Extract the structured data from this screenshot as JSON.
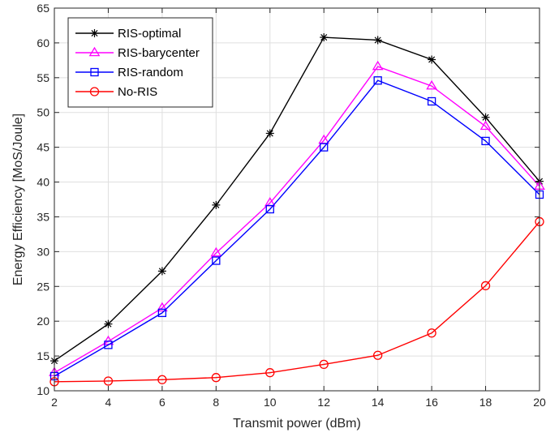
{
  "chart_data": {
    "type": "line",
    "title": "",
    "xlabel": "Transmit power (dBm)",
    "ylabel": "Energy Efficiency [MoS/Joule]",
    "x": [
      2,
      4,
      6,
      8,
      10,
      12,
      14,
      16,
      18,
      20
    ],
    "xlim": [
      2,
      20
    ],
    "ylim": [
      10,
      65
    ],
    "xticks": [
      2,
      4,
      6,
      8,
      10,
      12,
      14,
      16,
      18,
      20
    ],
    "yticks": [
      10,
      15,
      20,
      25,
      30,
      35,
      40,
      45,
      50,
      55,
      60,
      65
    ],
    "grid": true,
    "legend_position": "top-left",
    "series": [
      {
        "name": "RIS-optimal",
        "color": "#000000",
        "marker": "asterisk",
        "values": [
          14.3,
          19.6,
          27.2,
          36.7,
          47.0,
          60.8,
          60.4,
          57.6,
          49.3,
          40.1
        ]
      },
      {
        "name": "RIS-barycenter",
        "color": "#ff00ff",
        "marker": "triangle",
        "values": [
          12.6,
          17.1,
          21.9,
          29.8,
          37.0,
          46.0,
          56.6,
          53.8,
          48.0,
          39.4
        ]
      },
      {
        "name": "RIS-random",
        "color": "#0000ff",
        "marker": "square",
        "values": [
          12.1,
          16.6,
          21.2,
          28.7,
          36.1,
          45.0,
          54.6,
          51.6,
          45.9,
          38.2
        ]
      },
      {
        "name": "No-RIS",
        "color": "#ff0000",
        "marker": "circle",
        "values": [
          11.3,
          11.4,
          11.6,
          11.9,
          12.6,
          13.8,
          15.1,
          18.3,
          25.1,
          34.3
        ]
      }
    ]
  }
}
